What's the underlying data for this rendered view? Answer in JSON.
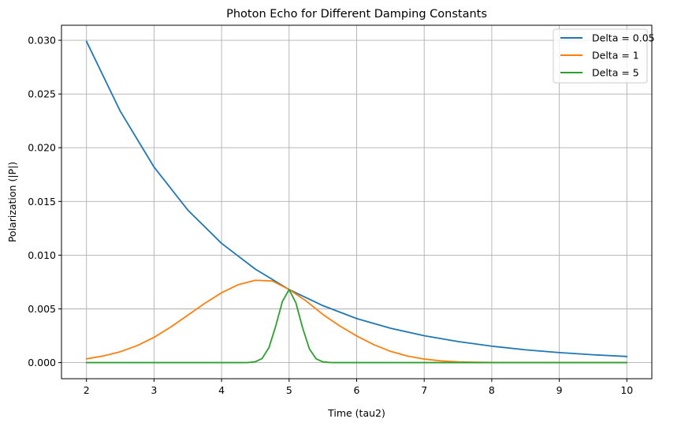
{
  "chart_data": {
    "type": "line",
    "title": "Photon Echo for Different Damping Constants",
    "xlabel": "Time (tau2)",
    "ylabel": "Polarization (|P|)",
    "xlim": [
      1.63,
      10.37
    ],
    "ylim": [
      -0.0015,
      0.0314
    ],
    "xticks": [
      2,
      3,
      4,
      5,
      6,
      7,
      8,
      9,
      10
    ],
    "xtick_labels": [
      "2",
      "3",
      "4",
      "5",
      "6",
      "7",
      "8",
      "9",
      "10"
    ],
    "yticks": [
      0.0,
      0.005,
      0.01,
      0.015,
      0.02,
      0.025,
      0.03
    ],
    "ytick_labels": [
      "0.000",
      "0.005",
      "0.010",
      "0.015",
      "0.020",
      "0.025",
      "0.030"
    ],
    "grid": true,
    "legend_position": "top-right",
    "series": [
      {
        "name": "Delta = 0.05",
        "color": "#1f77b4",
        "x": [
          2.0,
          2.5,
          3.0,
          3.5,
          4.0,
          4.5,
          5.0,
          5.5,
          6.0,
          6.5,
          7.0,
          7.5,
          8.0,
          8.5,
          9.0,
          9.5,
          10.0
        ],
        "y": [
          0.0299,
          0.0234,
          0.0182,
          0.0142,
          0.0111,
          0.0087,
          0.0068,
          0.0053,
          0.0041,
          0.0032,
          0.0025,
          0.00196,
          0.00153,
          0.00119,
          0.00093,
          0.00073,
          0.00057
        ]
      },
      {
        "name": "Delta = 1",
        "color": "#ff7f0e",
        "x": [
          2.0,
          2.25,
          2.5,
          2.75,
          3.0,
          3.25,
          3.5,
          3.75,
          4.0,
          4.25,
          4.5,
          4.75,
          5.0,
          5.25,
          5.5,
          5.75,
          6.0,
          6.25,
          6.5,
          6.75,
          7.0,
          7.25,
          7.5,
          7.75,
          8.0,
          8.5,
          9.0,
          9.5,
          10.0
        ],
        "y": [
          0.00035,
          0.00062,
          0.00101,
          0.00158,
          0.00235,
          0.00332,
          0.00441,
          0.00551,
          0.0065,
          0.00726,
          0.00766,
          0.0076,
          0.0068,
          0.00575,
          0.00448,
          0.00341,
          0.00248,
          0.00168,
          0.00105,
          0.00061,
          0.00033,
          0.00016,
          7e-05,
          3e-05,
          1e-05,
          0.0,
          0.0,
          0.0,
          0.0
        ]
      },
      {
        "name": "Delta = 5",
        "color": "#2ca02c",
        "x": [
          2.0,
          4.0,
          4.3,
          4.4,
          4.5,
          4.6,
          4.7,
          4.8,
          4.9,
          5.0,
          5.1,
          5.2,
          5.3,
          5.4,
          5.5,
          5.6,
          5.7,
          6.0,
          10.0
        ],
        "y": [
          0.0,
          0.0,
          0.0,
          1e-05,
          8e-05,
          0.00038,
          0.00137,
          0.00336,
          0.00568,
          0.0068,
          0.00557,
          0.00323,
          0.00128,
          0.00035,
          7e-05,
          1e-05,
          0.0,
          0.0,
          0.0
        ]
      }
    ]
  }
}
